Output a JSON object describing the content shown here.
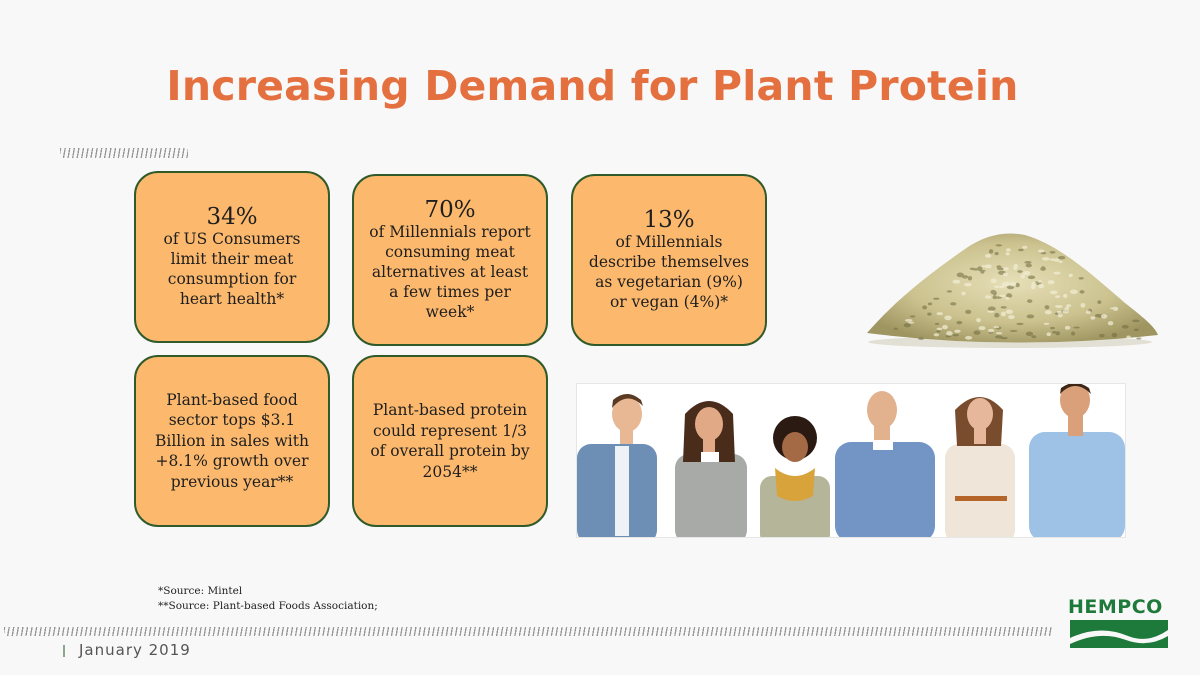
{
  "slide": {
    "title": "Increasing Demand for Plant Protein",
    "cards": [
      {
        "stat": "34%",
        "desc": "of US Consumers limit their meat consumption for heart health*"
      },
      {
        "stat": "70%",
        "desc": "of Millennials report consuming meat alternatives at least a few times per week*"
      },
      {
        "stat": "13%",
        "desc": "of Millennials describe themselves as vegetarian (9%) or vegan (4%)*"
      },
      {
        "desc": "Plant-based food sector tops $3.1 Billion in sales with +8.1% growth over previous year**"
      },
      {
        "desc": "Plant-based protein could represent 1/3 of overall protein by 2054**"
      }
    ],
    "footnotes": [
      "*Source: Mintel",
      "**Source: Plant-based Foods Association;"
    ],
    "date": "January 2019",
    "logo_text": "HEMPCO",
    "colors": {
      "title": "#e46f3f",
      "card_fill": "#fcb96d",
      "card_border": "#2f5a2a",
      "logo_green": "#1e7a3a"
    }
  }
}
